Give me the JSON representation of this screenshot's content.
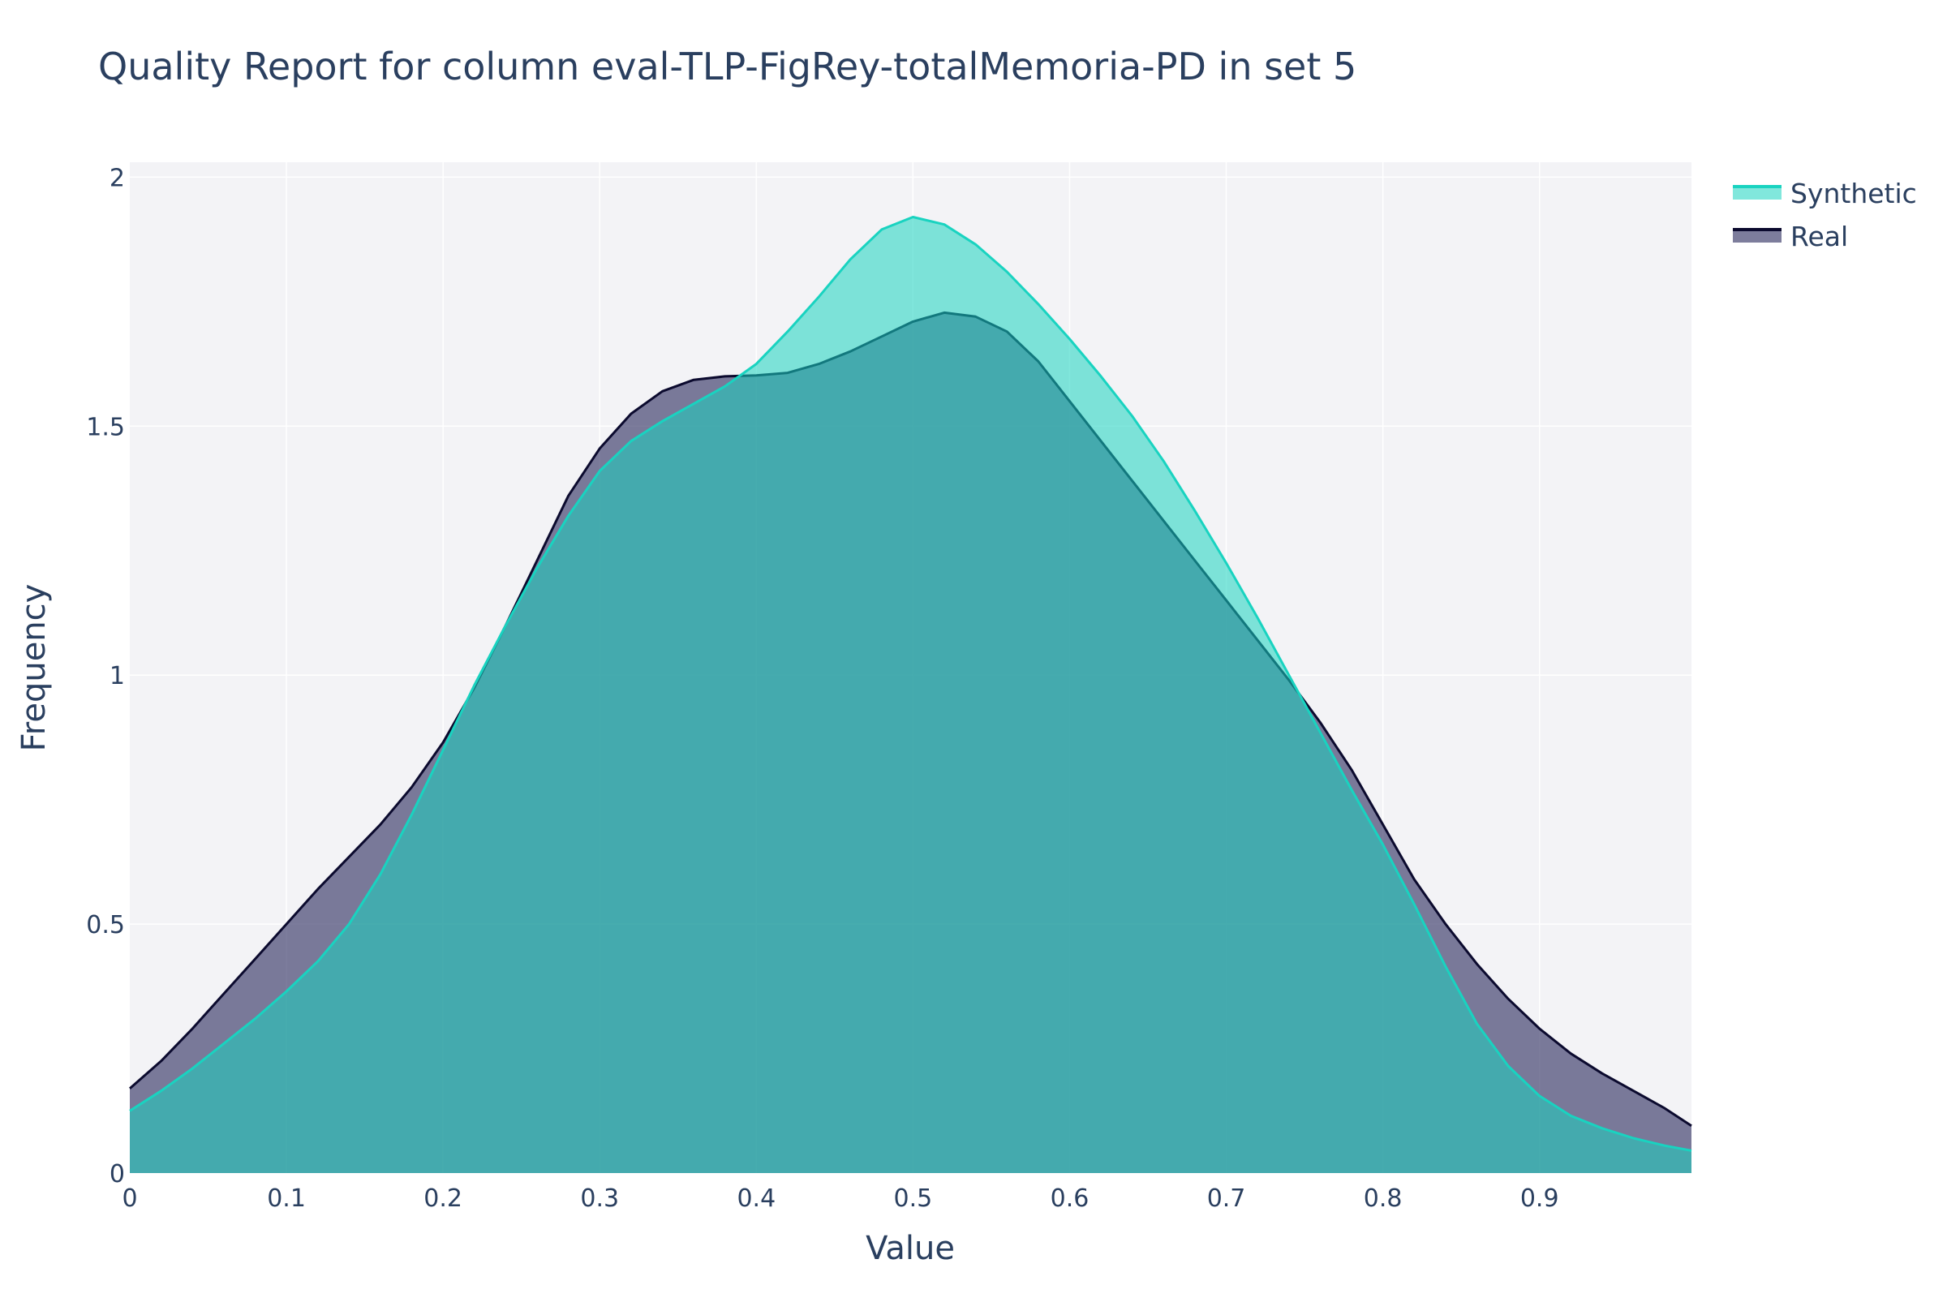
{
  "chart_data": {
    "type": "area",
    "title": "Quality Report for column eval-TLP-FigRey-totalMemoria-PD in set 5",
    "xlabel": "Value",
    "ylabel": "Frequency",
    "xlim": [
      0,
      0.997
    ],
    "ylim": [
      0,
      2.03
    ],
    "x_ticks": [
      "0",
      "0.1",
      "0.2",
      "0.3",
      "0.4",
      "0.5",
      "0.6",
      "0.7",
      "0.8",
      "0.9"
    ],
    "x_tick_values": [
      0,
      0.1,
      0.2,
      0.3,
      0.4,
      0.5,
      0.6,
      0.7,
      0.8,
      0.9
    ],
    "y_ticks": [
      "0",
      "0.5",
      "1",
      "1.5",
      "2"
    ],
    "y_tick_values": [
      0,
      0.5,
      1,
      1.5,
      2
    ],
    "grid": true,
    "legend_position": "top-right",
    "series": [
      {
        "name": "Real",
        "line_color": "#0b0a2e",
        "fill_color": "rgba(58,58,104,0.66)",
        "points": [
          [
            0,
            0.17
          ],
          [
            0.02,
            0.225
          ],
          [
            0.04,
            0.29
          ],
          [
            0.06,
            0.36
          ],
          [
            0.08,
            0.43
          ],
          [
            0.1,
            0.5
          ],
          [
            0.12,
            0.57
          ],
          [
            0.14,
            0.635
          ],
          [
            0.16,
            0.7
          ],
          [
            0.18,
            0.775
          ],
          [
            0.2,
            0.865
          ],
          [
            0.22,
            0.975
          ],
          [
            0.24,
            1.1
          ],
          [
            0.26,
            1.23
          ],
          [
            0.28,
            1.36
          ],
          [
            0.3,
            1.455
          ],
          [
            0.32,
            1.525
          ],
          [
            0.34,
            1.57
          ],
          [
            0.36,
            1.593
          ],
          [
            0.38,
            1.6
          ],
          [
            0.4,
            1.602
          ],
          [
            0.42,
            1.607
          ],
          [
            0.44,
            1.625
          ],
          [
            0.46,
            1.65
          ],
          [
            0.48,
            1.68
          ],
          [
            0.5,
            1.71
          ],
          [
            0.52,
            1.728
          ],
          [
            0.54,
            1.72
          ],
          [
            0.56,
            1.69
          ],
          [
            0.58,
            1.63
          ],
          [
            0.6,
            1.55
          ],
          [
            0.62,
            1.47
          ],
          [
            0.64,
            1.39
          ],
          [
            0.66,
            1.31
          ],
          [
            0.68,
            1.23
          ],
          [
            0.7,
            1.15
          ],
          [
            0.72,
            1.07
          ],
          [
            0.74,
            0.99
          ],
          [
            0.76,
            0.905
          ],
          [
            0.78,
            0.81
          ],
          [
            0.8,
            0.7
          ],
          [
            0.82,
            0.59
          ],
          [
            0.84,
            0.5
          ],
          [
            0.86,
            0.42
          ],
          [
            0.88,
            0.35
          ],
          [
            0.9,
            0.29
          ],
          [
            0.92,
            0.24
          ],
          [
            0.94,
            0.2
          ],
          [
            0.96,
            0.165
          ],
          [
            0.98,
            0.13
          ],
          [
            0.997,
            0.095
          ]
        ]
      },
      {
        "name": "Synthetic",
        "line_color": "#19d3c0",
        "fill_color": "rgba(25,211,192,0.55)",
        "points": [
          [
            0,
            0.125
          ],
          [
            0.02,
            0.165
          ],
          [
            0.04,
            0.21
          ],
          [
            0.06,
            0.26
          ],
          [
            0.08,
            0.31
          ],
          [
            0.1,
            0.365
          ],
          [
            0.12,
            0.425
          ],
          [
            0.14,
            0.5
          ],
          [
            0.16,
            0.6
          ],
          [
            0.18,
            0.72
          ],
          [
            0.2,
            0.85
          ],
          [
            0.22,
            0.98
          ],
          [
            0.24,
            1.1
          ],
          [
            0.26,
            1.215
          ],
          [
            0.28,
            1.32
          ],
          [
            0.3,
            1.41
          ],
          [
            0.32,
            1.47
          ],
          [
            0.34,
            1.51
          ],
          [
            0.36,
            1.545
          ],
          [
            0.38,
            1.58
          ],
          [
            0.4,
            1.625
          ],
          [
            0.42,
            1.69
          ],
          [
            0.44,
            1.76
          ],
          [
            0.46,
            1.835
          ],
          [
            0.48,
            1.895
          ],
          [
            0.5,
            1.92
          ],
          [
            0.52,
            1.905
          ],
          [
            0.54,
            1.865
          ],
          [
            0.56,
            1.81
          ],
          [
            0.58,
            1.745
          ],
          [
            0.6,
            1.675
          ],
          [
            0.62,
            1.6
          ],
          [
            0.64,
            1.52
          ],
          [
            0.66,
            1.43
          ],
          [
            0.68,
            1.33
          ],
          [
            0.7,
            1.225
          ],
          [
            0.72,
            1.115
          ],
          [
            0.74,
            1.0
          ],
          [
            0.76,
            0.885
          ],
          [
            0.78,
            0.77
          ],
          [
            0.8,
            0.66
          ],
          [
            0.82,
            0.54
          ],
          [
            0.84,
            0.415
          ],
          [
            0.86,
            0.3
          ],
          [
            0.88,
            0.215
          ],
          [
            0.9,
            0.155
          ],
          [
            0.92,
            0.115
          ],
          [
            0.94,
            0.09
          ],
          [
            0.96,
            0.07
          ],
          [
            0.98,
            0.055
          ],
          [
            0.997,
            0.045
          ]
        ]
      }
    ]
  }
}
